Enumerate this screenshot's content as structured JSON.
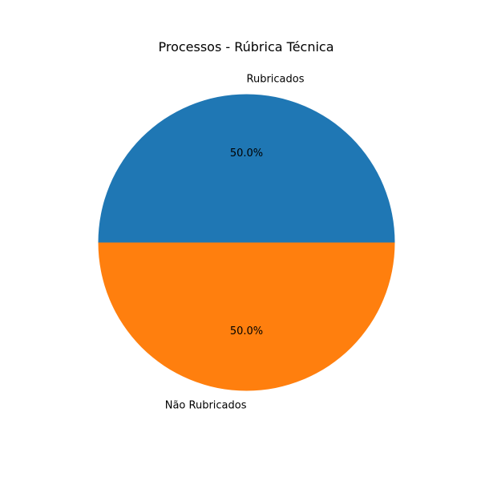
{
  "chart_data": {
    "type": "pie",
    "title": "Processos - Rúbrica Técnica",
    "start_angle_deg": 0,
    "direction": "counterclockwise",
    "slices": [
      {
        "label": "Rubricados",
        "value": 50.0,
        "pct_label": "50.0%",
        "color": "#1f77b4"
      },
      {
        "label": "Não Rubricados",
        "value": 50.0,
        "pct_label": "50.0%",
        "color": "#ff7f0e"
      }
    ]
  }
}
